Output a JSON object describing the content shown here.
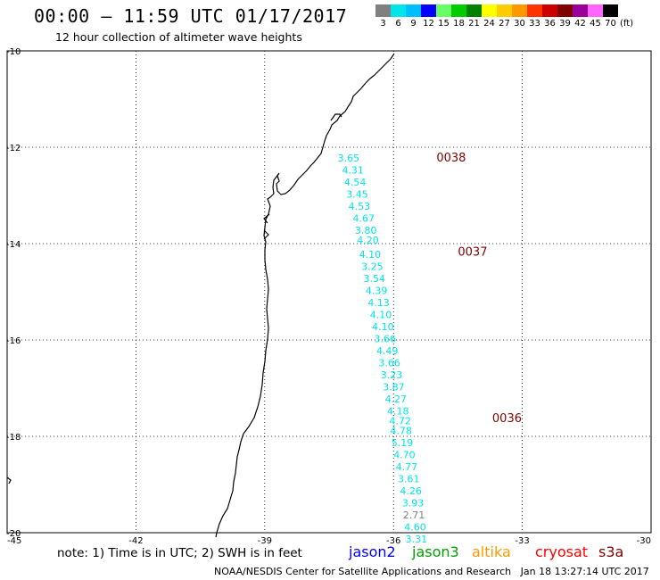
{
  "title": "00:00 — 11:59 UTC 01/17/2017",
  "subtitle": "12 hour collection of altimeter wave heights",
  "color_scale": {
    "labels": [
      "3",
      "6",
      "9",
      "12",
      "15",
      "18",
      "21",
      "24",
      "27",
      "30",
      "33",
      "36",
      "39",
      "42",
      "45",
      "70"
    ],
    "unit": "(ft)",
    "colors": [
      "#808080",
      "#00e5e5",
      "#00bfff",
      "#0000ff",
      "#66ff66",
      "#00cc00",
      "#008000",
      "#ffff00",
      "#ffcc00",
      "#ff9900",
      "#ff3300",
      "#cc0000",
      "#800000",
      "#990099",
      "#ff66ff",
      "#000000"
    ]
  },
  "map_data": {
    "lat_ticks": [
      "-10",
      "-12",
      "-14",
      "-16",
      "-18",
      "-20"
    ],
    "lon_ticks": [
      "-45",
      "-42",
      "-39",
      "-36",
      "-33",
      "-30"
    ],
    "lat_range": [
      -20,
      -10
    ],
    "lon_range": [
      -45,
      -30
    ],
    "cycle_labels": [
      {
        "text": "0038",
        "lat": -12.3,
        "lon": -35.0
      },
      {
        "text": "0037",
        "lat": -14.25,
        "lon": -34.5
      },
      {
        "text": "0036",
        "lat": -17.7,
        "lon": -33.7
      }
    ],
    "wave_points": [
      {
        "v": "3.65",
        "lat": -12.3,
        "lon": -37.3,
        "c": "#00e5e5"
      },
      {
        "v": "4.31",
        "lat": -12.55,
        "lon": -37.2,
        "c": "#00e5e5"
      },
      {
        "v": "4.54",
        "lat": -12.8,
        "lon": -37.15,
        "c": "#00e5e5"
      },
      {
        "v": "3.45",
        "lat": -13.05,
        "lon": -37.1,
        "c": "#00e5e5"
      },
      {
        "v": "4.53",
        "lat": -13.3,
        "lon": -37.05,
        "c": "#00e5e5"
      },
      {
        "v": "4.67",
        "lat": -13.55,
        "lon": -36.95,
        "c": "#00e5e5"
      },
      {
        "v": "3.80",
        "lat": -13.8,
        "lon": -36.9,
        "c": "#00e5e5"
      },
      {
        "v": "4.20",
        "lat": -14.0,
        "lon": -36.85,
        "c": "#00e5e5"
      },
      {
        "v": "4.10",
        "lat": -14.3,
        "lon": -36.8,
        "c": "#00e5e5"
      },
      {
        "v": "3.25",
        "lat": -14.55,
        "lon": -36.75,
        "c": "#00e5e5"
      },
      {
        "v": "3.54",
        "lat": -14.8,
        "lon": -36.7,
        "c": "#00e5e5"
      },
      {
        "v": "4.39",
        "lat": -15.05,
        "lon": -36.65,
        "c": "#00e5e5"
      },
      {
        "v": "4.13",
        "lat": -15.3,
        "lon": -36.6,
        "c": "#00e5e5"
      },
      {
        "v": "4.10",
        "lat": -15.55,
        "lon": -36.55,
        "c": "#00e5e5"
      },
      {
        "v": "4.10",
        "lat": -15.8,
        "lon": -36.5,
        "c": "#00e5e5"
      },
      {
        "v": "3.66",
        "lat": -16.05,
        "lon": -36.45,
        "c": "#00e5e5"
      },
      {
        "v": "4.49",
        "lat": -16.3,
        "lon": -36.4,
        "c": "#00e5e5"
      },
      {
        "v": "3.66",
        "lat": -16.55,
        "lon": -36.35,
        "c": "#00e5e5"
      },
      {
        "v": "3.23",
        "lat": -16.8,
        "lon": -36.3,
        "c": "#00e5e5"
      },
      {
        "v": "3.87",
        "lat": -17.05,
        "lon": -36.25,
        "c": "#00e5e5"
      },
      {
        "v": "4.27",
        "lat": -17.3,
        "lon": -36.2,
        "c": "#00e5e5"
      },
      {
        "v": "4.18",
        "lat": -17.55,
        "lon": -36.15,
        "c": "#00e5e5"
      },
      {
        "v": "4.72",
        "lat": -17.75,
        "lon": -36.1,
        "c": "#00e5e5"
      },
      {
        "v": "4.78",
        "lat": -17.95,
        "lon": -36.08,
        "c": "#00e5e5"
      },
      {
        "v": "5.19",
        "lat": -18.2,
        "lon": -36.05,
        "c": "#00e5e5"
      },
      {
        "v": "4.70",
        "lat": -18.45,
        "lon": -36.0,
        "c": "#00e5e5"
      },
      {
        "v": "4.77",
        "lat": -18.7,
        "lon": -35.95,
        "c": "#00e5e5"
      },
      {
        "v": "3.61",
        "lat": -18.95,
        "lon": -35.9,
        "c": "#00e5e5"
      },
      {
        "v": "4.26",
        "lat": -19.2,
        "lon": -35.85,
        "c": "#00e5e5"
      },
      {
        "v": "3.93",
        "lat": -19.45,
        "lon": -35.8,
        "c": "#00e5e5"
      },
      {
        "v": "2.71",
        "lat": -19.7,
        "lon": -35.78,
        "c": "#808080"
      },
      {
        "v": "4.60",
        "lat": -19.95,
        "lon": -35.75,
        "c": "#00e5e5"
      },
      {
        "v": "3.31",
        "lat": -20.2,
        "lon": -35.72,
        "c": "#00e5e5"
      }
    ]
  },
  "note": "note: 1) Time is in UTC; 2) SWH is in feet",
  "satellites": [
    {
      "name": "jason2",
      "color": "#0000ff"
    },
    {
      "name": "jason3",
      "color": "#00a000"
    },
    {
      "name": "altika",
      "color": "#ff9900"
    },
    {
      "name": "cryosat",
      "color": "#ff0000"
    },
    {
      "name": "s3a",
      "color": "#800000"
    }
  ],
  "credit": "NOAA/NESDIS Center for Satellite Applications and Research   Jan 18 13:27:14 UTC 2017"
}
